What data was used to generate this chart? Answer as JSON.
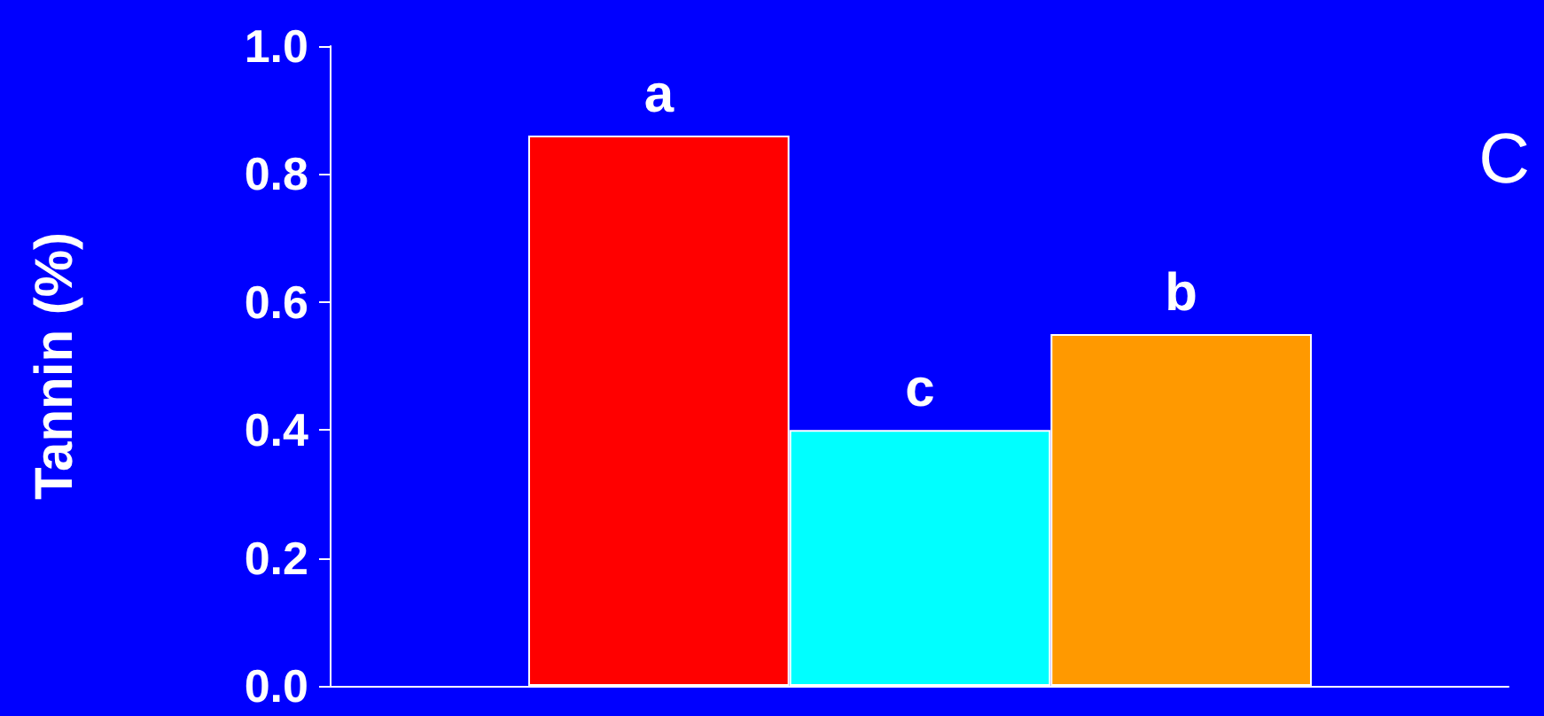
{
  "chart_data": {
    "type": "bar",
    "ylabel": "Tannin (%)",
    "annotations": [
      "C"
    ],
    "categories": [
      null,
      null,
      null
    ],
    "values": [
      0.86,
      0.4,
      0.55
    ],
    "colors": [
      "#ff0000",
      "#00ffff",
      "#ff9900"
    ],
    "value_labels": [
      "a",
      "c",
      "b"
    ],
    "ylim": [
      0,
      1
    ],
    "yticks": [
      {
        "value": 0,
        "label": "0.0"
      },
      {
        "value": 0.2,
        "label": "0.2"
      },
      {
        "value": 0.4,
        "label": "0.4"
      },
      {
        "value": 0.6,
        "label": "0.6"
      },
      {
        "value": 0.8,
        "label": "0.8"
      },
      {
        "value": 1,
        "label": "1.0"
      }
    ],
    "grid": false
  }
}
